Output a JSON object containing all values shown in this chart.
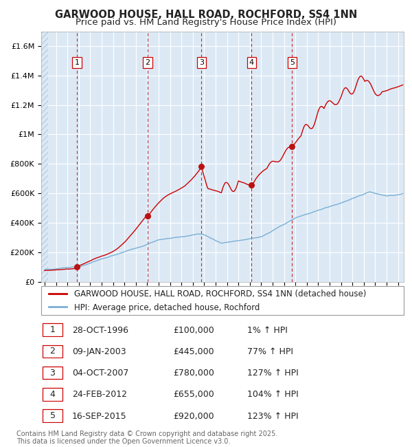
{
  "title": "GARWOOD HOUSE, HALL ROAD, ROCHFORD, SS4 1NN",
  "subtitle": "Price paid vs. HM Land Registry's House Price Index (HPI)",
  "plot_bg_color": "#dce9f5",
  "hatch_color": "#b8cfe0",
  "red_line_color": "#cc0000",
  "blue_line_color": "#7aafd4",
  "grid_color": "#ffffff",
  "dashed_line_color": "#cc0000",
  "ylim": [
    0,
    1700000
  ],
  "yticks": [
    0,
    200000,
    400000,
    600000,
    800000,
    1000000,
    1200000,
    1400000,
    1600000
  ],
  "ytick_labels": [
    "£0",
    "£200K",
    "£400K",
    "£600K",
    "£800K",
    "£1M",
    "£1.2M",
    "£1.4M",
    "£1.6M"
  ],
  "xlim_start": 1993.7,
  "xlim_end": 2025.5,
  "sale_dates_decimal": [
    1996.83,
    2003.03,
    2007.76,
    2012.15,
    2015.71
  ],
  "sale_prices": [
    100000,
    445000,
    780000,
    655000,
    920000
  ],
  "sale_labels": [
    "1",
    "2",
    "3",
    "4",
    "5"
  ],
  "sale_info": [
    {
      "num": "1",
      "date": "28-OCT-1996",
      "price": "£100,000",
      "hpi": "1% ↑ HPI"
    },
    {
      "num": "2",
      "date": "09-JAN-2003",
      "price": "£445,000",
      "hpi": "77% ↑ HPI"
    },
    {
      "num": "3",
      "date": "04-OCT-2007",
      "price": "£780,000",
      "hpi": "127% ↑ HPI"
    },
    {
      "num": "4",
      "date": "24-FEB-2012",
      "price": "£655,000",
      "hpi": "104% ↑ HPI"
    },
    {
      "num": "5",
      "date": "16-SEP-2015",
      "price": "£920,000",
      "hpi": "123% ↑ HPI"
    }
  ],
  "legend_line1": "GARWOOD HOUSE, HALL ROAD, ROCHFORD, SS4 1NN (detached house)",
  "legend_line2": "HPI: Average price, detached house, Rochford",
  "footnote": "Contains HM Land Registry data © Crown copyright and database right 2025.\nThis data is licensed under the Open Government Licence v3.0.",
  "title_fontsize": 10.5,
  "subtitle_fontsize": 9.5,
  "tick_fontsize": 8,
  "legend_fontsize": 8.5,
  "label_fontsize": 9,
  "footnote_fontsize": 7
}
